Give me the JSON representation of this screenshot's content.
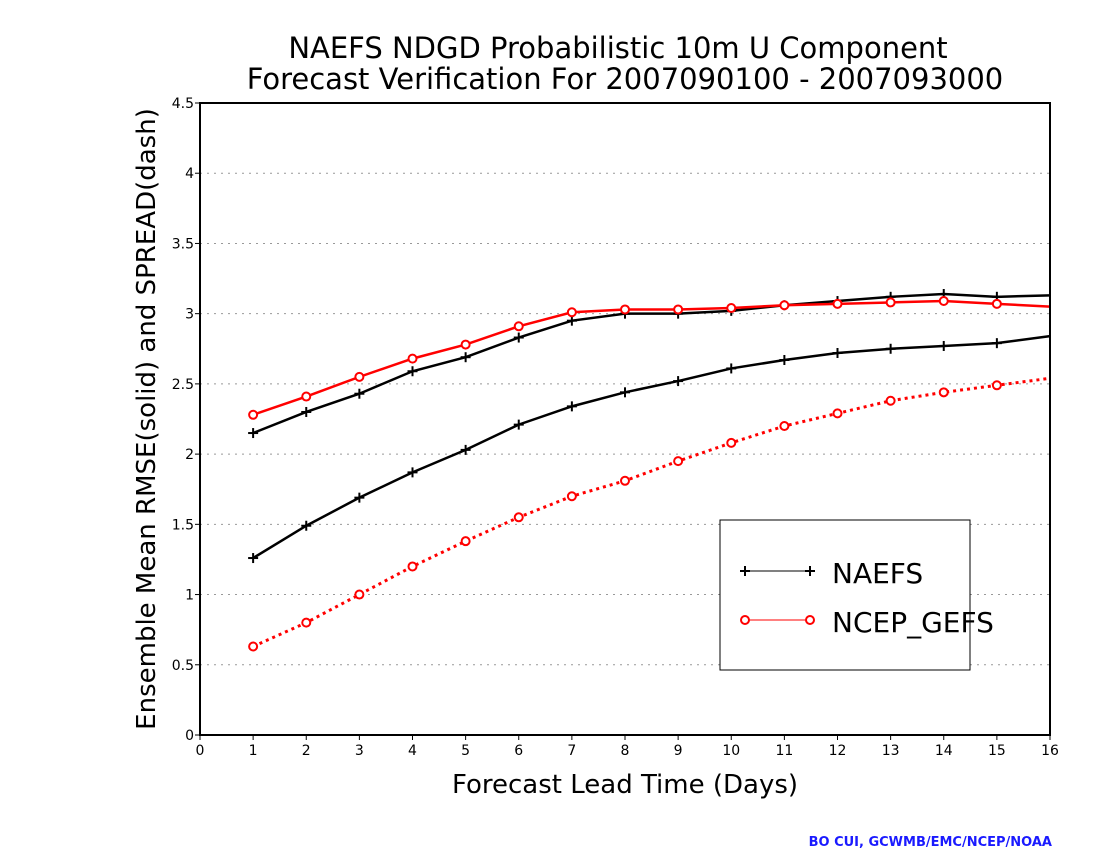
{
  "chart_data": {
    "type": "line",
    "title": "NAEFS NDGD Probabilistic 10m U Component",
    "subtitle": "Forecast Verification For 2007090100 - 2007093000",
    "xlabel": "Forecast Lead Time (Days)",
    "ylabel": "Ensemble Mean RMSE(solid) and SPREAD(dash)",
    "xlim": [
      0,
      16
    ],
    "ylim": [
      0,
      4.5
    ],
    "x_ticks": [
      "0",
      "1",
      "2",
      "3",
      "4",
      "5",
      "6",
      "7",
      "8",
      "9",
      "10",
      "11",
      "12",
      "13",
      "14",
      "15",
      "16"
    ],
    "y_ticks": [
      "0",
      "0.5",
      "1",
      "1.5",
      "2",
      "2.5",
      "3",
      "3.5",
      "4",
      "4.5"
    ],
    "grid": "horizontal dotted",
    "legend_placement": "lower-right",
    "x": [
      1,
      2,
      3,
      4,
      5,
      6,
      7,
      8,
      9,
      10,
      11,
      12,
      13,
      14,
      15,
      16
    ],
    "series": [
      {
        "name": "NAEFS",
        "metric": "RMSE",
        "style": "solid",
        "marker": "plus",
        "color": "#000000",
        "values": [
          2.15,
          2.3,
          2.43,
          2.59,
          2.69,
          2.83,
          2.95,
          3.0,
          3.0,
          3.02,
          3.06,
          3.09,
          3.12,
          3.14,
          3.12,
          3.13
        ]
      },
      {
        "name": "NAEFS",
        "metric": "SPREAD",
        "style": "solid",
        "marker": "plus",
        "color": "#000000",
        "values": [
          1.26,
          1.49,
          1.69,
          1.87,
          2.03,
          2.21,
          2.34,
          2.44,
          2.52,
          2.61,
          2.67,
          2.72,
          2.75,
          2.77,
          2.79,
          2.84
        ]
      },
      {
        "name": "NCEP_GEFS",
        "metric": "RMSE",
        "style": "solid",
        "marker": "circle",
        "color": "#ff0000",
        "values": [
          2.28,
          2.41,
          2.55,
          2.68,
          2.78,
          2.91,
          3.01,
          3.03,
          3.03,
          3.04,
          3.06,
          3.07,
          3.08,
          3.09,
          3.07,
          3.05
        ]
      },
      {
        "name": "NCEP_GEFS",
        "metric": "SPREAD",
        "style": "dotted",
        "marker": "circle",
        "color": "#ff0000",
        "values": [
          0.63,
          0.8,
          1.0,
          1.2,
          1.38,
          1.55,
          1.7,
          1.81,
          1.95,
          2.08,
          2.2,
          2.29,
          2.38,
          2.44,
          2.49,
          2.54
        ]
      }
    ],
    "legend": [
      {
        "label": "NAEFS",
        "marker": "plus",
        "color": "#000000"
      },
      {
        "label": "NCEP_GEFS",
        "marker": "circle",
        "color": "#ff0000"
      }
    ]
  },
  "credit": "BO CUI, GCWMB/EMC/NCEP/NOAA",
  "colors": {
    "credit": "#1a1aff",
    "grid": "#999999",
    "axis": "#000000"
  }
}
